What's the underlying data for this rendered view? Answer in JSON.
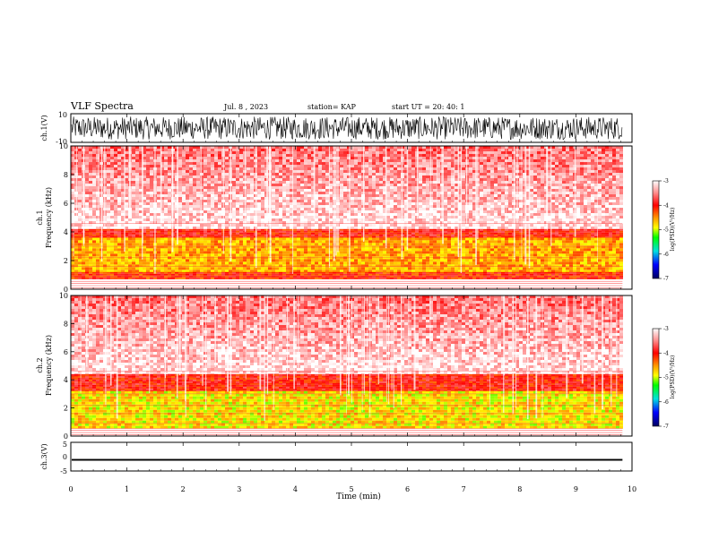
{
  "header": {
    "title": "VLF Spectra",
    "date": "Jul. 8 , 2023",
    "station": "station= KAP",
    "start": "start UT =  20: 40: 1"
  },
  "chart_data": [
    {
      "type": "line",
      "panel": "ch1-waveform",
      "ylabel": "ch.1(V)",
      "ylim": [
        -10,
        10
      ],
      "yticks": [
        "10",
        "-10"
      ],
      "xlim": [
        0,
        10
      ],
      "x_end_data": 9.83,
      "description_values": {
        "amplitude_range": [
          -8,
          8
        ]
      },
      "color": "#000000"
    },
    {
      "type": "heatmap",
      "panel": "ch1-spectrogram",
      "ylabel": "ch.1\nFrequency (kHz)",
      "ylim": [
        0,
        10
      ],
      "yticks": [
        "0",
        "2",
        "4",
        "6",
        "8",
        "10"
      ],
      "xlim": [
        0,
        9.83
      ],
      "bands": [
        {
          "f_low": 4.2,
          "f_high": 10,
          "level": -3.6
        },
        {
          "f_low": 3.6,
          "f_high": 4.2,
          "level": -4.0
        },
        {
          "f_low": 1.2,
          "f_high": 3.6,
          "level": -4.6
        },
        {
          "f_low": 0.7,
          "f_high": 1.2,
          "level": -4.1
        }
      ],
      "colorbar": {
        "label": "log(PSD)(V²/Hz)",
        "ticks": [
          "-3",
          "-4",
          "-5",
          "-6",
          "-7"
        ],
        "range": [
          -7,
          -3
        ]
      }
    },
    {
      "type": "heatmap",
      "panel": "ch2-spectrogram",
      "ylabel": "ch.2\nFrequency (kHz)",
      "ylim": [
        0,
        10
      ],
      "yticks": [
        "0",
        "2",
        "4",
        "6",
        "8",
        "10"
      ],
      "xlim": [
        0,
        9.83
      ],
      "bands": [
        {
          "f_low": 4.4,
          "f_high": 10,
          "level": -3.6
        },
        {
          "f_low": 3.2,
          "f_high": 4.4,
          "level": -4.0
        },
        {
          "f_low": 0.6,
          "f_high": 3.2,
          "level": -4.8
        }
      ],
      "colorbar": {
        "label": "log(PSD)(V²/Hz)",
        "ticks": [
          "-3",
          "-4",
          "-5",
          "-6",
          "-7"
        ],
        "range": [
          -7,
          -3
        ]
      }
    },
    {
      "type": "line",
      "panel": "ch3-waveform",
      "ylabel": "ch.3(V)",
      "ylim": [
        -5,
        5
      ],
      "yticks": [
        "5",
        "0",
        "-5"
      ],
      "xlim": [
        0,
        10
      ],
      "x_end_data": 9.83,
      "description_values": {
        "amplitude_range": [
          -1.4,
          -0.8
        ]
      },
      "color": "#000000"
    }
  ],
  "xaxis": {
    "label": "Time (min)",
    "ticks": [
      "0",
      "1",
      "2",
      "3",
      "4",
      "5",
      "6",
      "7",
      "8",
      "9",
      "10"
    ]
  },
  "colors": {
    "white": "#ffffff",
    "red": "#ff0000",
    "orange": "#ff8c00",
    "yellow": "#ffff00",
    "green": "#00ff00",
    "blue": "#0000ff",
    "navy": "#000060"
  }
}
